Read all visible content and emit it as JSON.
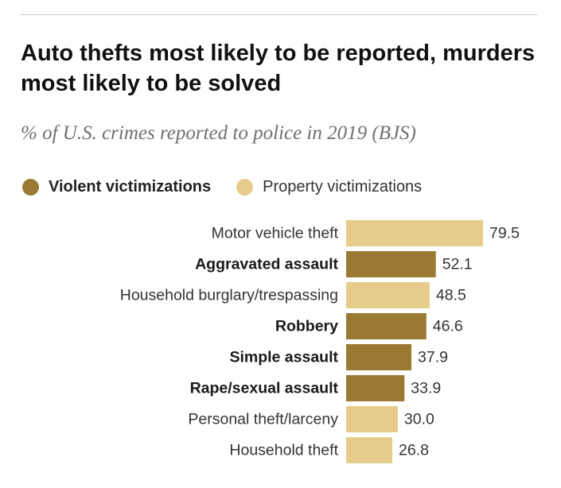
{
  "header": {
    "title": "Auto thefts most likely to be reported, murders most likely to be solved",
    "subtitle": "% of U.S. crimes reported to police in 2019 (BJS)"
  },
  "legend": {
    "violent_label": "Violent victimizations",
    "property_label": "Property victimizations"
  },
  "colors": {
    "violent": "#9a7a32",
    "property": "#e6cc8a"
  },
  "chart_data": {
    "type": "bar",
    "orientation": "horizontal",
    "title": "Auto thefts most likely to be reported, murders most likely to be solved",
    "subtitle": "% of U.S. crimes reported to police in 2019 (BJS)",
    "xlabel": "",
    "ylabel": "",
    "xlim": [
      0,
      100
    ],
    "grid": false,
    "legend_position": "top-left",
    "series": [
      {
        "name": "Violent victimizations",
        "color": "#9a7a32"
      },
      {
        "name": "Property victimizations",
        "color": "#e6cc8a"
      }
    ],
    "bars": [
      {
        "category": "Motor vehicle theft",
        "value": 79.5,
        "label": "79.5",
        "group": "property"
      },
      {
        "category": "Aggravated assault",
        "value": 52.1,
        "label": "52.1",
        "group": "violent"
      },
      {
        "category": "Household burglary/trespassing",
        "value": 48.5,
        "label": "48.5",
        "group": "property"
      },
      {
        "category": "Robbery",
        "value": 46.6,
        "label": "46.6",
        "group": "violent"
      },
      {
        "category": "Simple assault",
        "value": 37.9,
        "label": "37.9",
        "group": "violent"
      },
      {
        "category": "Rape/sexual assault",
        "value": 33.9,
        "label": "33.9",
        "group": "violent"
      },
      {
        "category": "Personal theft/larceny",
        "value": 30.0,
        "label": "30.0",
        "group": "property"
      },
      {
        "category": "Household theft",
        "value": 26.8,
        "label": "26.8",
        "group": "property"
      }
    ]
  }
}
